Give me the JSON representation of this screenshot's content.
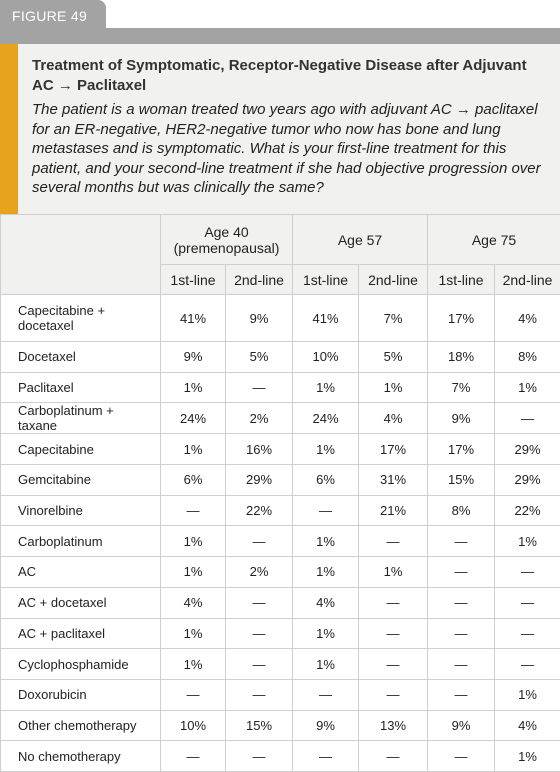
{
  "figure_label": "FIGURE 49",
  "title": "Treatment of Symptomatic, Receptor-Negative Disease after Adjuvant AC → Paclitaxel",
  "question": "The patient is a woman treated two years ago with adjuvant AC → paclitaxel for an ER-negative, HER2-negative tumor who now has bone and lung metastases and is symptomatic. What is your first-line treatment for this patient, and your second-line treatment if she had objective progression over several months but was clinically the same?",
  "table": {
    "column_groups": [
      "Age 40 (premenopausal)",
      "Age 57",
      "Age 75"
    ],
    "subheaders": [
      "1st-line",
      "2nd-line",
      "1st-line",
      "2nd-line",
      "1st-line",
      "2nd-line"
    ],
    "rows": [
      {
        "label": "Capecitabine + docetaxel",
        "cells": [
          "41%",
          "9%",
          "41%",
          "7%",
          "17%",
          "4%"
        ]
      },
      {
        "label": "Docetaxel",
        "cells": [
          "9%",
          "5%",
          "10%",
          "5%",
          "18%",
          "8%"
        ]
      },
      {
        "label": "Paclitaxel",
        "cells": [
          "1%",
          "—",
          "1%",
          "1%",
          "7%",
          "1%"
        ]
      },
      {
        "label": "Carboplatinum + taxane",
        "cells": [
          "24%",
          "2%",
          "24%",
          "4%",
          "9%",
          "—"
        ]
      },
      {
        "label": "Capecitabine",
        "cells": [
          "1%",
          "16%",
          "1%",
          "17%",
          "17%",
          "29%"
        ]
      },
      {
        "label": "Gemcitabine",
        "cells": [
          "6%",
          "29%",
          "6%",
          "31%",
          "15%",
          "29%"
        ]
      },
      {
        "label": "Vinorelbine",
        "cells": [
          "—",
          "22%",
          "—",
          "21%",
          "8%",
          "22%"
        ]
      },
      {
        "label": "Carboplatinum",
        "cells": [
          "1%",
          "—",
          "1%",
          "—",
          "—",
          "1%"
        ]
      },
      {
        "label": "AC",
        "cells": [
          "1%",
          "2%",
          "1%",
          "1%",
          "—",
          "—"
        ]
      },
      {
        "label": "AC + docetaxel",
        "cells": [
          "4%",
          "—",
          "4%",
          "—",
          "—",
          "—"
        ]
      },
      {
        "label": "AC + paclitaxel",
        "cells": [
          "1%",
          "—",
          "1%",
          "—",
          "—",
          "—"
        ]
      },
      {
        "label": "Cyclophosphamide",
        "cells": [
          "1%",
          "—",
          "1%",
          "—",
          "—",
          "—"
        ]
      },
      {
        "label": "Doxorubicin",
        "cells": [
          "—",
          "—",
          "—",
          "—",
          "—",
          "1%"
        ]
      },
      {
        "label": "Other chemotherapy",
        "cells": [
          "10%",
          "15%",
          "9%",
          "13%",
          "9%",
          "4%"
        ]
      },
      {
        "label": "No chemotherapy",
        "cells": [
          "—",
          "—",
          "—",
          "—",
          "—",
          "1%"
        ]
      }
    ]
  }
}
